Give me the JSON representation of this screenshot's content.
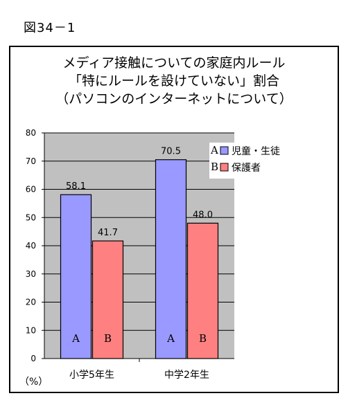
{
  "figure_label": "図34－1",
  "chart_data": {
    "type": "bar",
    "title_lines": [
      "メディア接触についての家庭内ルール",
      "「特にルールを設けていない」割合",
      "（パソコンのインターネットについて）"
    ],
    "categories": [
      "小学5年生",
      "中学2年生"
    ],
    "series": [
      {
        "name": "児童・生徒",
        "marker": "A",
        "color": "#9999ff",
        "values": [
          58.1,
          70.5
        ]
      },
      {
        "name": "保護者",
        "marker": "B",
        "color": "#ff8080",
        "values": [
          41.7,
          48.0
        ]
      }
    ],
    "value_labels": [
      [
        "58.1",
        "70.5"
      ],
      [
        "41.7",
        "48.0"
      ]
    ],
    "ylabel": "（%）",
    "ylim": [
      0,
      80
    ],
    "yticks": [
      0,
      10,
      20,
      30,
      40,
      50,
      60,
      70,
      80
    ],
    "grid": true,
    "plot_background": "#c0c0c0",
    "legend_position": "top-right"
  }
}
